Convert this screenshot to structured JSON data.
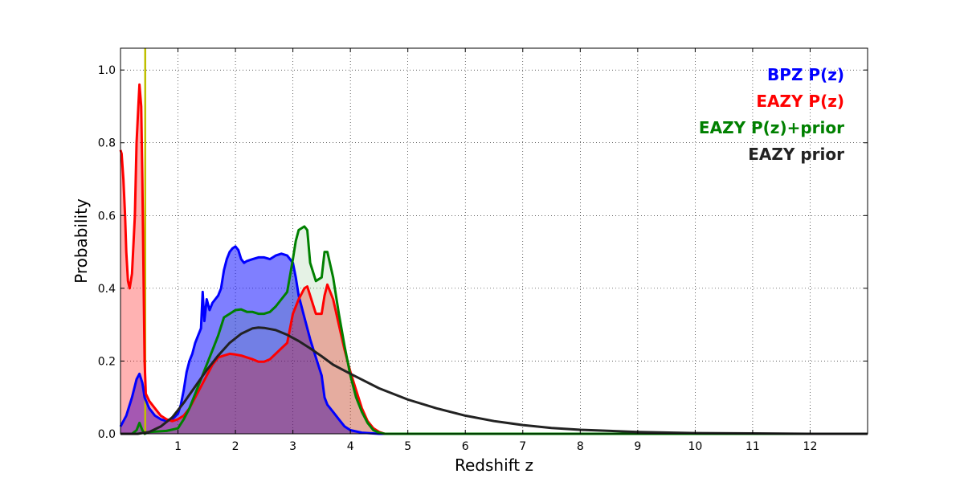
{
  "chart_data": {
    "type": "area",
    "title": "",
    "xlabel": "Redshift z",
    "ylabel": "Probability",
    "xlim": [
      0,
      13
    ],
    "ylim": [
      0,
      1.06
    ],
    "grid": true,
    "legend_placement": "top-right",
    "x_ticks": [
      {
        "value": 1,
        "label": "1"
      },
      {
        "value": 2,
        "label": "2"
      },
      {
        "value": 3,
        "label": "3"
      },
      {
        "value": 4,
        "label": "4"
      },
      {
        "value": 5,
        "label": "5"
      },
      {
        "value": 6,
        "label": "6"
      },
      {
        "value": 7,
        "label": "7"
      },
      {
        "value": 8,
        "label": "8"
      },
      {
        "value": 9,
        "label": "9"
      },
      {
        "value": 10,
        "label": "10"
      },
      {
        "value": 11,
        "label": "11"
      },
      {
        "value": 12,
        "label": "12"
      }
    ],
    "y_ticks": [
      {
        "value": 0.0,
        "label": "0.0"
      },
      {
        "value": 0.2,
        "label": "0.2"
      },
      {
        "value": 0.4,
        "label": "0.4"
      },
      {
        "value": 0.6,
        "label": "0.6"
      },
      {
        "value": 0.8,
        "label": "0.8"
      },
      {
        "value": 1.0,
        "label": "1.0"
      }
    ],
    "vertical_line": {
      "x": 0.43,
      "color": "#bfbf00"
    },
    "series": [
      {
        "name": "BPZ P(z)",
        "color": "#0000ff",
        "fill": "#0000ff",
        "fill_opacity": 0.5,
        "points": [
          [
            0,
            0.02
          ],
          [
            0.1,
            0.05
          ],
          [
            0.2,
            0.1
          ],
          [
            0.28,
            0.15
          ],
          [
            0.33,
            0.165
          ],
          [
            0.38,
            0.14
          ],
          [
            0.42,
            0.1
          ],
          [
            0.5,
            0.07
          ],
          [
            0.6,
            0.05
          ],
          [
            0.7,
            0.04
          ],
          [
            0.8,
            0.035
          ],
          [
            0.9,
            0.04
          ],
          [
            1.0,
            0.055
          ],
          [
            1.05,
            0.08
          ],
          [
            1.1,
            0.12
          ],
          [
            1.15,
            0.17
          ],
          [
            1.2,
            0.2
          ],
          [
            1.25,
            0.22
          ],
          [
            1.3,
            0.25
          ],
          [
            1.35,
            0.27
          ],
          [
            1.4,
            0.29
          ],
          [
            1.43,
            0.39
          ],
          [
            1.46,
            0.31
          ],
          [
            1.5,
            0.37
          ],
          [
            1.55,
            0.34
          ],
          [
            1.6,
            0.36
          ],
          [
            1.65,
            0.37
          ],
          [
            1.7,
            0.38
          ],
          [
            1.75,
            0.4
          ],
          [
            1.8,
            0.45
          ],
          [
            1.85,
            0.48
          ],
          [
            1.9,
            0.5
          ],
          [
            1.95,
            0.51
          ],
          [
            2.0,
            0.515
          ],
          [
            2.05,
            0.505
          ],
          [
            2.1,
            0.48
          ],
          [
            2.15,
            0.47
          ],
          [
            2.2,
            0.475
          ],
          [
            2.3,
            0.48
          ],
          [
            2.4,
            0.485
          ],
          [
            2.5,
            0.485
          ],
          [
            2.6,
            0.48
          ],
          [
            2.7,
            0.49
          ],
          [
            2.8,
            0.495
          ],
          [
            2.9,
            0.49
          ],
          [
            3.0,
            0.47
          ],
          [
            3.05,
            0.43
          ],
          [
            3.1,
            0.38
          ],
          [
            3.2,
            0.32
          ],
          [
            3.3,
            0.26
          ],
          [
            3.4,
            0.21
          ],
          [
            3.5,
            0.16
          ],
          [
            3.55,
            0.1
          ],
          [
            3.6,
            0.08
          ],
          [
            3.7,
            0.06
          ],
          [
            3.8,
            0.04
          ],
          [
            3.9,
            0.02
          ],
          [
            4.0,
            0.01
          ],
          [
            4.2,
            0.003
          ],
          [
            4.5,
            0.0
          ],
          [
            13,
            0.0
          ]
        ]
      },
      {
        "name": "EAZY P(z)",
        "color": "#ff0000",
        "fill": "#ff0000",
        "fill_opacity": 0.3,
        "points": [
          [
            0,
            0.78
          ],
          [
            0.02,
            0.77
          ],
          [
            0.05,
            0.7
          ],
          [
            0.08,
            0.6
          ],
          [
            0.1,
            0.5
          ],
          [
            0.13,
            0.42
          ],
          [
            0.16,
            0.4
          ],
          [
            0.2,
            0.44
          ],
          [
            0.25,
            0.6
          ],
          [
            0.28,
            0.8
          ],
          [
            0.31,
            0.9
          ],
          [
            0.33,
            0.96
          ],
          [
            0.36,
            0.9
          ],
          [
            0.38,
            0.7
          ],
          [
            0.4,
            0.45
          ],
          [
            0.42,
            0.2
          ],
          [
            0.44,
            0.11
          ],
          [
            0.5,
            0.09
          ],
          [
            0.6,
            0.07
          ],
          [
            0.7,
            0.05
          ],
          [
            0.8,
            0.04
          ],
          [
            0.9,
            0.035
          ],
          [
            1.0,
            0.04
          ],
          [
            1.1,
            0.05
          ],
          [
            1.2,
            0.07
          ],
          [
            1.3,
            0.1
          ],
          [
            1.4,
            0.13
          ],
          [
            1.5,
            0.16
          ],
          [
            1.6,
            0.19
          ],
          [
            1.7,
            0.21
          ],
          [
            1.8,
            0.215
          ],
          [
            1.9,
            0.22
          ],
          [
            2.0,
            0.218
          ],
          [
            2.1,
            0.215
          ],
          [
            2.2,
            0.21
          ],
          [
            2.3,
            0.205
          ],
          [
            2.4,
            0.198
          ],
          [
            2.5,
            0.198
          ],
          [
            2.6,
            0.205
          ],
          [
            2.7,
            0.22
          ],
          [
            2.8,
            0.235
          ],
          [
            2.9,
            0.25
          ],
          [
            3.0,
            0.33
          ],
          [
            3.1,
            0.37
          ],
          [
            3.2,
            0.4
          ],
          [
            3.25,
            0.405
          ],
          [
            3.3,
            0.38
          ],
          [
            3.4,
            0.33
          ],
          [
            3.5,
            0.33
          ],
          [
            3.55,
            0.38
          ],
          [
            3.6,
            0.41
          ],
          [
            3.7,
            0.37
          ],
          [
            3.8,
            0.3
          ],
          [
            3.9,
            0.23
          ],
          [
            4.0,
            0.17
          ],
          [
            4.1,
            0.12
          ],
          [
            4.2,
            0.07
          ],
          [
            4.3,
            0.035
          ],
          [
            4.4,
            0.015
          ],
          [
            4.5,
            0.005
          ],
          [
            4.6,
            0.0
          ],
          [
            13,
            0.0
          ]
        ]
      },
      {
        "name": "EAZY P(z)+prior",
        "color": "#008000",
        "fill": "#008000",
        "fill_opacity": 0.1,
        "points": [
          [
            0,
            0.0
          ],
          [
            0.2,
            0.0
          ],
          [
            0.28,
            0.01
          ],
          [
            0.33,
            0.03
          ],
          [
            0.38,
            0.01
          ],
          [
            0.42,
            0.0
          ],
          [
            0.5,
            0.005
          ],
          [
            0.8,
            0.008
          ],
          [
            1.0,
            0.015
          ],
          [
            1.1,
            0.04
          ],
          [
            1.2,
            0.07
          ],
          [
            1.3,
            0.11
          ],
          [
            1.4,
            0.15
          ],
          [
            1.5,
            0.19
          ],
          [
            1.6,
            0.23
          ],
          [
            1.7,
            0.27
          ],
          [
            1.8,
            0.32
          ],
          [
            1.9,
            0.33
          ],
          [
            2.0,
            0.34
          ],
          [
            2.1,
            0.342
          ],
          [
            2.2,
            0.335
          ],
          [
            2.3,
            0.335
          ],
          [
            2.4,
            0.33
          ],
          [
            2.5,
            0.33
          ],
          [
            2.6,
            0.335
          ],
          [
            2.7,
            0.35
          ],
          [
            2.8,
            0.37
          ],
          [
            2.9,
            0.39
          ],
          [
            3.0,
            0.48
          ],
          [
            3.05,
            0.53
          ],
          [
            3.1,
            0.56
          ],
          [
            3.2,
            0.57
          ],
          [
            3.25,
            0.56
          ],
          [
            3.3,
            0.47
          ],
          [
            3.4,
            0.42
          ],
          [
            3.5,
            0.43
          ],
          [
            3.55,
            0.5
          ],
          [
            3.6,
            0.5
          ],
          [
            3.7,
            0.43
          ],
          [
            3.8,
            0.33
          ],
          [
            3.9,
            0.24
          ],
          [
            4.0,
            0.16
          ],
          [
            4.1,
            0.1
          ],
          [
            4.2,
            0.06
          ],
          [
            4.3,
            0.03
          ],
          [
            4.4,
            0.01
          ],
          [
            4.5,
            0.003
          ],
          [
            4.6,
            0.0
          ],
          [
            13,
            0.0
          ]
        ]
      },
      {
        "name": "EAZY prior",
        "color": "#222222",
        "fill": null,
        "fill_opacity": 0,
        "points": [
          [
            0,
            0.0
          ],
          [
            0.3,
            0.0
          ],
          [
            0.5,
            0.005
          ],
          [
            0.7,
            0.02
          ],
          [
            0.9,
            0.045
          ],
          [
            1.1,
            0.085
          ],
          [
            1.3,
            0.13
          ],
          [
            1.5,
            0.175
          ],
          [
            1.7,
            0.215
          ],
          [
            1.9,
            0.25
          ],
          [
            2.1,
            0.275
          ],
          [
            2.3,
            0.29
          ],
          [
            2.4,
            0.292
          ],
          [
            2.5,
            0.291
          ],
          [
            2.7,
            0.285
          ],
          [
            2.9,
            0.272
          ],
          [
            3.1,
            0.255
          ],
          [
            3.3,
            0.235
          ],
          [
            3.5,
            0.213
          ],
          [
            3.7,
            0.19
          ],
          [
            4.0,
            0.165
          ],
          [
            4.5,
            0.125
          ],
          [
            5.0,
            0.094
          ],
          [
            5.5,
            0.07
          ],
          [
            6.0,
            0.05
          ],
          [
            6.5,
            0.035
          ],
          [
            7.0,
            0.024
          ],
          [
            7.5,
            0.016
          ],
          [
            8.0,
            0.011
          ],
          [
            9.0,
            0.005
          ],
          [
            10.0,
            0.002
          ],
          [
            11.0,
            0.001
          ],
          [
            12.0,
            0.0
          ],
          [
            13,
            0.0
          ]
        ]
      }
    ]
  }
}
